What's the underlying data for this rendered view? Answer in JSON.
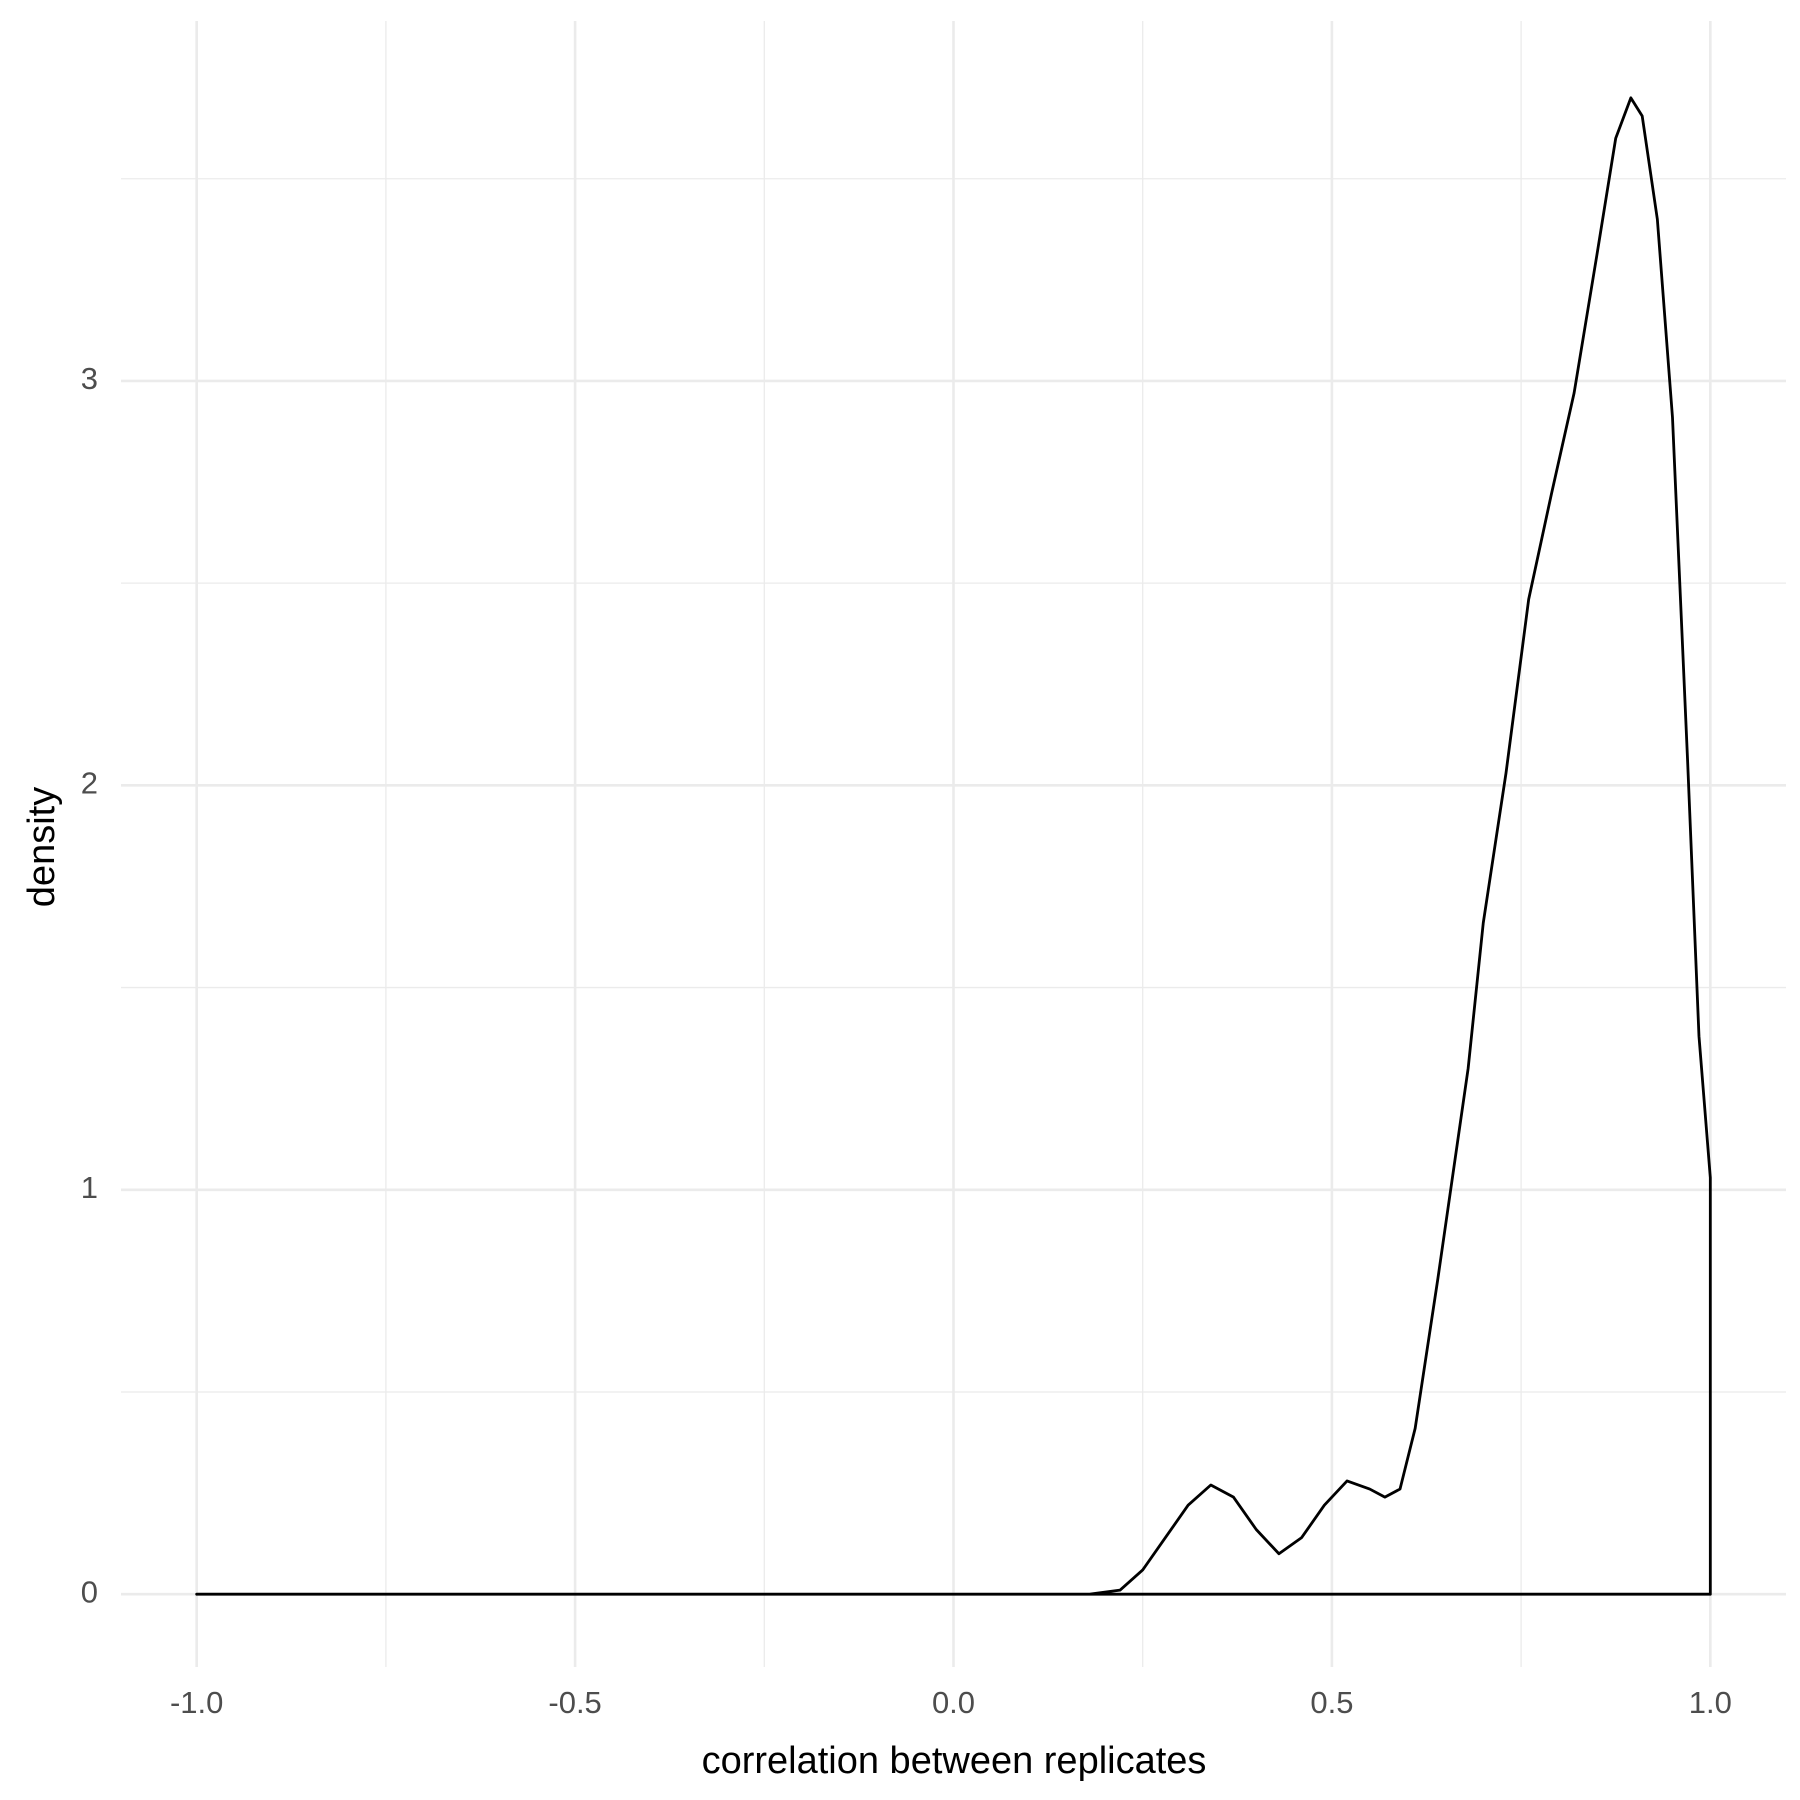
{
  "chart_data": {
    "type": "line",
    "xlabel": "correlation between replicates",
    "ylabel": "density",
    "x": [
      -1,
      0.18,
      0.22,
      0.25,
      0.28,
      0.31,
      0.34,
      0.37,
      0.4,
      0.43,
      0.46,
      0.49,
      0.52,
      0.55,
      0.57,
      0.59,
      0.61,
      0.64,
      0.68,
      0.7,
      0.73,
      0.76,
      0.79,
      0.82,
      0.85,
      0.875,
      0.895,
      0.91,
      0.93,
      0.95,
      0.97,
      0.985,
      1.0,
      1.0
    ],
    "values": [
      0,
      0,
      0.01,
      0.06,
      0.14,
      0.22,
      0.27,
      0.24,
      0.16,
      0.1,
      0.14,
      0.22,
      0.28,
      0.26,
      0.24,
      0.26,
      0.41,
      0.78,
      1.3,
      1.66,
      2.03,
      2.46,
      2.72,
      2.97,
      3.31,
      3.6,
      3.7,
      3.655,
      3.4,
      2.91,
      2.06,
      1.38,
      1.03,
      0
    ],
    "color": "#000000",
    "xlim": [
      -1.1,
      1.1
    ],
    "ylim": [
      -0.18,
      3.89
    ],
    "xticks": [
      {
        "value": -1,
        "label": "-1.0"
      },
      {
        "value": -0.5,
        "label": "-0.5"
      },
      {
        "value": 0,
        "label": "0.0"
      },
      {
        "value": 0.5,
        "label": "0.5"
      },
      {
        "value": 1,
        "label": "1.0"
      }
    ],
    "yticks": [
      0,
      1,
      2,
      3
    ],
    "grid": true
  }
}
